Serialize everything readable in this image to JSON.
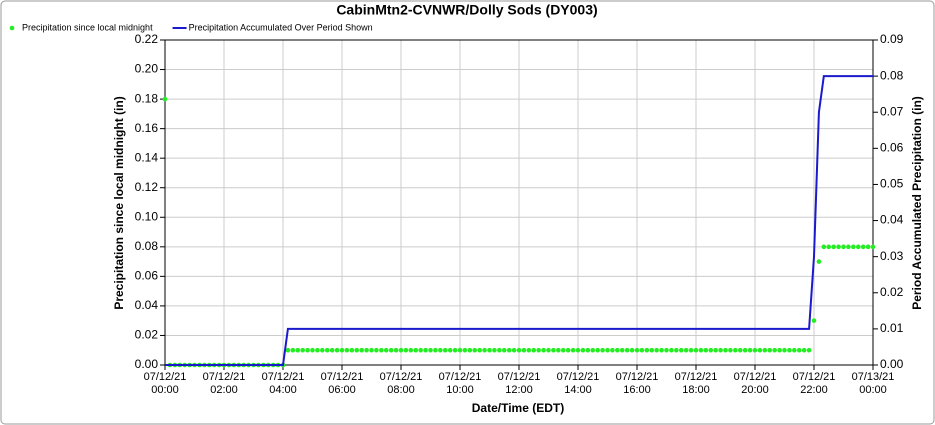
{
  "chart_data": {
    "type": "line",
    "title": "CabinMtn2-CVNWR/Dolly Sods (DY003)",
    "x_label": "Date/Time (EDT)",
    "y_label": "Precipitation since local midnight (in)",
    "y2_label": "Period Accumulated Precipitation (in)",
    "legend": "top-left",
    "grid": true,
    "xlim": [
      "07/12/21 00:00",
      "07/13/21 00:00"
    ],
    "xticks": [
      {
        "value": "07/12/21 00:00",
        "label": "07/12/21\n00:00"
      },
      {
        "value": "07/12/21 02:00",
        "label": "07/12/21\n02:00"
      },
      {
        "value": "07/12/21 04:00",
        "label": "07/12/21\n04:00"
      },
      {
        "value": "07/12/21 06:00",
        "label": "07/12/21\n06:00"
      },
      {
        "value": "07/12/21 08:00",
        "label": "07/12/21\n08:00"
      },
      {
        "value": "07/12/21 10:00",
        "label": "07/12/21\n10:00"
      },
      {
        "value": "07/12/21 12:00",
        "label": "07/12/21\n12:00"
      },
      {
        "value": "07/12/21 14:00",
        "label": "07/12/21\n14:00"
      },
      {
        "value": "07/12/21 16:00",
        "label": "07/12/21\n16:00"
      },
      {
        "value": "07/12/21 18:00",
        "label": "07/12/21\n18:00"
      },
      {
        "value": "07/12/21 20:00",
        "label": "07/12/21\n20:00"
      },
      {
        "value": "07/12/21 22:00",
        "label": "07/12/21\n22:00"
      },
      {
        "value": "07/13/21 00:00",
        "label": "07/13/21\n00:00"
      }
    ],
    "ylim": [
      0,
      0.22
    ],
    "yticks": [
      {
        "value": 0,
        "label": "0.00"
      },
      {
        "value": 0.02,
        "label": "0.02"
      },
      {
        "value": 0.04,
        "label": "0.04"
      },
      {
        "value": 0.06,
        "label": "0.06"
      },
      {
        "value": 0.08,
        "label": "0.08"
      },
      {
        "value": 0.1,
        "label": "0.10"
      },
      {
        "value": 0.12,
        "label": "0.12"
      },
      {
        "value": 0.14,
        "label": "0.14"
      },
      {
        "value": 0.16,
        "label": "0.16"
      },
      {
        "value": 0.18,
        "label": "0.18"
      },
      {
        "value": 0.2,
        "label": "0.20"
      },
      {
        "value": 0.22,
        "label": "0.22"
      }
    ],
    "y2lim": [
      0,
      0.09
    ],
    "y2ticks": [
      {
        "value": 0,
        "label": "0.00"
      },
      0.01,
      0.02,
      0.03,
      0.04,
      0.05,
      0.06,
      0.07,
      0.08,
      0.09
    ],
    "series": [
      {
        "name": "Precipitation since local midnight",
        "color": "#22ee22",
        "style": "points",
        "x": [
          "07/12/21 00:00",
          "07/12/21 00:10",
          "07/12/21 00:20",
          "07/12/21 00:30",
          "07/12/21 00:40",
          "07/12/21 00:50",
          "07/12/21 01:00",
          "07/12/21 01:10",
          "07/12/21 01:20",
          "07/12/21 01:30",
          "07/12/21 01:40",
          "07/12/21 01:50",
          "07/12/21 02:00",
          "07/12/21 02:10",
          "07/12/21 02:20",
          "07/12/21 02:30",
          "07/12/21 02:40",
          "07/12/21 02:50",
          "07/12/21 03:00",
          "07/12/21 03:10",
          "07/12/21 03:20",
          "07/12/21 03:30",
          "07/12/21 03:40",
          "07/12/21 03:50",
          "07/12/21 04:00",
          "07/12/21 04:10",
          "07/12/21 04:20",
          "07/12/21 04:30",
          "07/12/21 04:40",
          "07/12/21 04:50",
          "07/12/21 05:00",
          "07/12/21 05:10",
          "07/12/21 05:20",
          "07/12/21 05:30",
          "07/12/21 05:40",
          "07/12/21 05:50",
          "07/12/21 06:00",
          "07/12/21 06:10",
          "07/12/21 06:20",
          "07/12/21 06:30",
          "07/12/21 06:40",
          "07/12/21 06:50",
          "07/12/21 07:00",
          "07/12/21 07:10",
          "07/12/21 07:20",
          "07/12/21 07:30",
          "07/12/21 07:40",
          "07/12/21 07:50",
          "07/12/21 08:00",
          "07/12/21 08:10",
          "07/12/21 08:20",
          "07/12/21 08:30",
          "07/12/21 08:40",
          "07/12/21 08:50",
          "07/12/21 09:00",
          "07/12/21 09:10",
          "07/12/21 09:20",
          "07/12/21 09:30",
          "07/12/21 09:40",
          "07/12/21 09:50",
          "07/12/21 10:00",
          "07/12/21 10:10",
          "07/12/21 10:20",
          "07/12/21 10:30",
          "07/12/21 10:40",
          "07/12/21 10:50",
          "07/12/21 11:00",
          "07/12/21 11:10",
          "07/12/21 11:20",
          "07/12/21 11:30",
          "07/12/21 11:40",
          "07/12/21 11:50",
          "07/12/21 12:00",
          "07/12/21 12:10",
          "07/12/21 12:20",
          "07/12/21 12:30",
          "07/12/21 12:40",
          "07/12/21 12:50",
          "07/12/21 13:00",
          "07/12/21 13:10",
          "07/12/21 13:20",
          "07/12/21 13:30",
          "07/12/21 13:40",
          "07/12/21 13:50",
          "07/12/21 14:00",
          "07/12/21 14:10",
          "07/12/21 14:20",
          "07/12/21 14:30",
          "07/12/21 14:40",
          "07/12/21 14:50",
          "07/12/21 15:00",
          "07/12/21 15:10",
          "07/12/21 15:20",
          "07/12/21 15:30",
          "07/12/21 15:40",
          "07/12/21 15:50",
          "07/12/21 16:00",
          "07/12/21 16:10",
          "07/12/21 16:20",
          "07/12/21 16:30",
          "07/12/21 16:40",
          "07/12/21 16:50",
          "07/12/21 17:00",
          "07/12/21 17:10",
          "07/12/21 17:20",
          "07/12/21 17:30",
          "07/12/21 17:40",
          "07/12/21 17:50",
          "07/12/21 18:00",
          "07/12/21 18:10",
          "07/12/21 18:20",
          "07/12/21 18:30",
          "07/12/21 18:40",
          "07/12/21 18:50",
          "07/12/21 19:00",
          "07/12/21 19:10",
          "07/12/21 19:20",
          "07/12/21 19:30",
          "07/12/21 19:40",
          "07/12/21 19:50",
          "07/12/21 20:00",
          "07/12/21 20:10",
          "07/12/21 20:20",
          "07/12/21 20:30",
          "07/12/21 20:40",
          "07/12/21 20:50",
          "07/12/21 21:00",
          "07/12/21 21:10",
          "07/12/21 21:20",
          "07/12/21 21:30",
          "07/12/21 21:40",
          "07/12/21 21:50",
          "07/12/21 22:00",
          "07/12/21 22:10",
          "07/12/21 22:20",
          "07/12/21 22:30",
          "07/12/21 22:40",
          "07/12/21 22:50",
          "07/12/21 23:00",
          "07/12/21 23:10",
          "07/12/21 23:20",
          "07/12/21 23:30",
          "07/12/21 23:40",
          "07/12/21 23:50",
          "07/13/21 00:00"
        ],
        "values": [
          0.18,
          0,
          0,
          0,
          0,
          0,
          0,
          0,
          0,
          0,
          0,
          0,
          0,
          0,
          0,
          0,
          0,
          0,
          0,
          0,
          0,
          0,
          0,
          0,
          0,
          0.01,
          0.01,
          0.01,
          0.01,
          0.01,
          0.01,
          0.01,
          0.01,
          0.01,
          0.01,
          0.01,
          0.01,
          0.01,
          0.01,
          0.01,
          0.01,
          0.01,
          0.01,
          0.01,
          0.01,
          0.01,
          0.01,
          0.01,
          0.01,
          0.01,
          0.01,
          0.01,
          0.01,
          0.01,
          0.01,
          0.01,
          0.01,
          0.01,
          0.01,
          0.01,
          0.01,
          0.01,
          0.01,
          0.01,
          0.01,
          0.01,
          0.01,
          0.01,
          0.01,
          0.01,
          0.01,
          0.01,
          0.01,
          0.01,
          0.01,
          0.01,
          0.01,
          0.01,
          0.01,
          0.01,
          0.01,
          0.01,
          0.01,
          0.01,
          0.01,
          0.01,
          0.01,
          0.01,
          0.01,
          0.01,
          0.01,
          0.01,
          0.01,
          0.01,
          0.01,
          0.01,
          0.01,
          0.01,
          0.01,
          0.01,
          0.01,
          0.01,
          0.01,
          0.01,
          0.01,
          0.01,
          0.01,
          0.01,
          0.01,
          0.01,
          0.01,
          0.01,
          0.01,
          0.01,
          0.01,
          0.01,
          0.01,
          0.01,
          0.01,
          0.01,
          0.01,
          0.01,
          0.01,
          0.01,
          0.01,
          0.01,
          0.01,
          0.01,
          0.01,
          0.01,
          0.01,
          0.01,
          0.03,
          0.07,
          0.08,
          0.08,
          0.08,
          0.08,
          0.08,
          0.08,
          0.08,
          0.08,
          0.08,
          0.08,
          0.08
        ]
      },
      {
        "name": "Precipitation Accumulated Over Period Shown",
        "color": "#1a1acc",
        "style": "line",
        "axis": "y2",
        "x": [
          "07/12/21 00:00",
          "07/12/21 04:00",
          "07/12/21 04:10",
          "07/12/21 21:50",
          "07/12/21 22:00",
          "07/12/21 22:10",
          "07/12/21 22:20",
          "07/13/21 00:00"
        ],
        "values": [
          0,
          0,
          0.01,
          0.01,
          0.03,
          0.07,
          0.08,
          0.08
        ]
      }
    ]
  }
}
